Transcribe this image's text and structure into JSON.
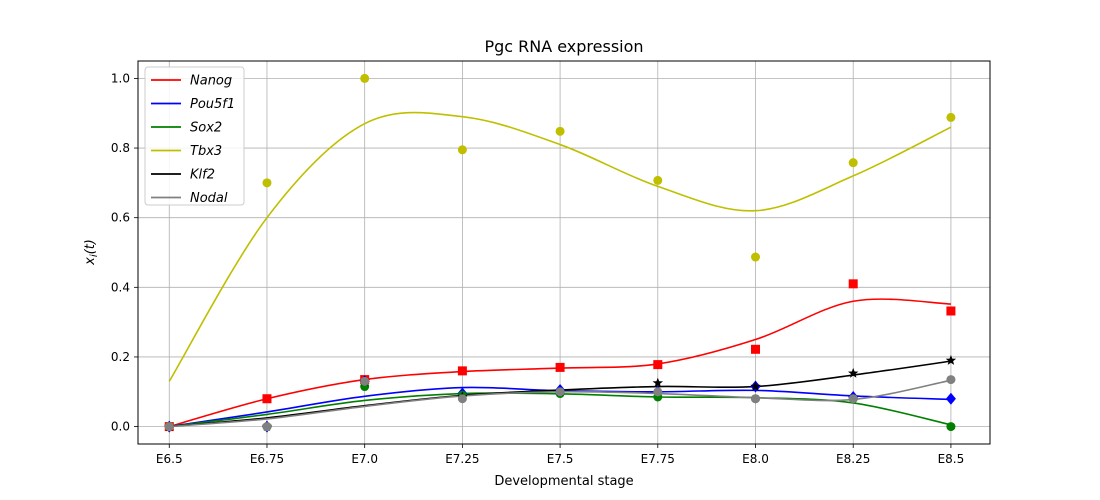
{
  "chart_data": {
    "type": "line",
    "title": "Pgc RNA expression",
    "xlabel": "Developmental stage",
    "ylabel": "x_i(t)",
    "x": [
      6.5,
      6.75,
      7.0,
      7.25,
      7.5,
      7.75,
      8.0,
      8.25,
      8.5
    ],
    "x_tick_labels": [
      "E6.5",
      "E6.75",
      "E7.0",
      "E7.25",
      "E7.5",
      "E7.75",
      "E8.0",
      "E8.25",
      "E8.5"
    ],
    "y_ticks": [
      0.0,
      0.2,
      0.4,
      0.6,
      0.8,
      1.0
    ],
    "y_tick_labels": [
      "0.0",
      "0.2",
      "0.4",
      "0.6",
      "0.8",
      "1.0"
    ],
    "xlim": [
      6.42,
      8.6
    ],
    "ylim": [
      -0.05,
      1.05
    ],
    "grid": true,
    "legend_position": "top-left",
    "series": [
      {
        "name": "Nanog",
        "color": "#ff0000",
        "marker": "square",
        "points": [
          0.0,
          0.08,
          0.135,
          0.16,
          0.17,
          0.178,
          0.222,
          0.41,
          0.332
        ],
        "curve": [
          0.0,
          0.08,
          0.135,
          0.158,
          0.168,
          0.18,
          0.25,
          0.36,
          0.352,
          0.355
        ]
      },
      {
        "name": "Pou5f1",
        "color": "#0000ff",
        "marker": "diamond",
        "points": [
          0.0,
          0.0,
          0.13,
          0.095,
          0.105,
          0.1,
          0.115,
          0.085,
          0.08
        ],
        "curve": [
          0.0,
          0.042,
          0.087,
          0.112,
          0.103,
          0.1,
          0.104,
          0.088,
          0.078,
          0.075
        ]
      },
      {
        "name": "Sox2",
        "color": "#008000",
        "marker": "circle",
        "points": [
          0.0,
          0.0,
          0.115,
          0.09,
          0.095,
          0.085,
          0.08,
          0.08,
          0.0
        ],
        "curve": [
          0.0,
          0.035,
          0.075,
          0.095,
          0.094,
          0.085,
          0.083,
          0.068,
          0.005,
          0.0
        ]
      },
      {
        "name": "Tbx3",
        "color": "#bfbf00",
        "marker": "circle",
        "points": [
          0.0,
          0.7,
          1.0,
          0.795,
          0.848,
          0.707,
          0.487,
          0.758,
          0.888
        ],
        "curve_start": 0.13,
        "curve": [
          0.13,
          0.6,
          0.87,
          0.89,
          0.81,
          0.69,
          0.62,
          0.72,
          0.86
        ]
      },
      {
        "name": "Klf2",
        "color": "#000000",
        "marker": "star",
        "points": [
          0.0,
          0.0,
          0.13,
          0.085,
          0.1,
          0.125,
          0.115,
          0.153,
          0.19
        ],
        "curve": [
          0.0,
          0.025,
          0.06,
          0.09,
          0.105,
          0.115,
          0.115,
          0.148,
          0.188
        ]
      },
      {
        "name": "Nodal",
        "color": "#808080",
        "marker": "circle",
        "points": [
          0.0,
          0.0,
          0.13,
          0.08,
          0.1,
          0.1,
          0.08,
          0.08,
          0.135
        ],
        "curve": [
          0.0,
          0.022,
          0.058,
          0.088,
          0.1,
          0.095,
          0.083,
          0.078,
          0.133
        ]
      }
    ]
  }
}
